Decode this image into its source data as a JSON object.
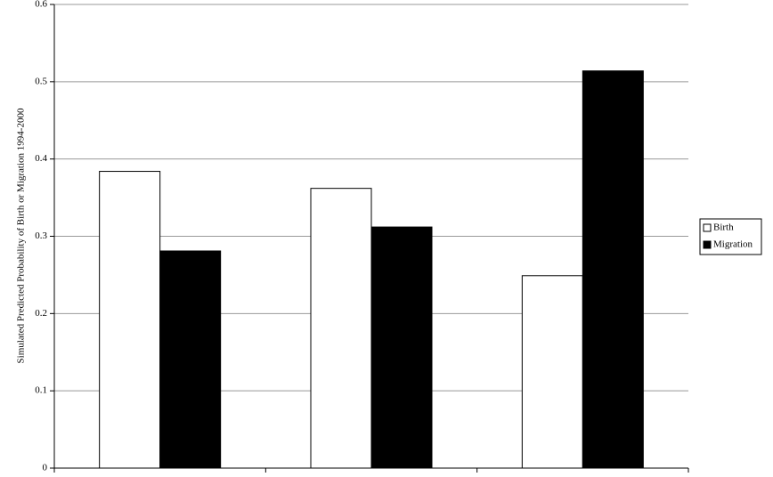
{
  "chart_data": {
    "type": "bar",
    "y_label": "Simulated Predicted Probability of Birth or Migration 1994-2000",
    "categories": [
      null,
      null,
      null
    ],
    "series": [
      {
        "name": "Birth",
        "color": "#ffffff",
        "values": [
          0.384,
          0.362,
          0.249
        ]
      },
      {
        "name": "Migration",
        "color": "#000000",
        "values": [
          0.281,
          0.312,
          0.514
        ]
      }
    ],
    "ylim": [
      0,
      0.6
    ],
    "yticks": [
      0,
      0.1,
      0.2,
      0.3,
      0.4,
      0.5,
      0.6
    ],
    "grid": true,
    "legend": "right"
  }
}
